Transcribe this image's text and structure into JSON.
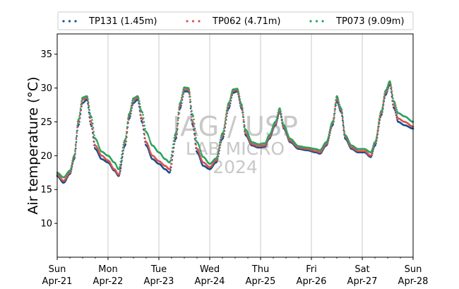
{
  "chart_data": {
    "type": "scatter",
    "ylabel": "Air temperature (°C)",
    "xlabel": "",
    "ylim": [
      5,
      38
    ],
    "xlim": [
      "2024-04-21T00:00",
      "2024-04-28T00:00"
    ],
    "y_ticks": [
      10,
      15,
      20,
      25,
      30,
      35
    ],
    "x_ticks": [
      {
        "at": "2024-04-21T00:00",
        "day": "Sun",
        "date": "Apr-21"
      },
      {
        "at": "2024-04-22T00:00",
        "day": "Mon",
        "date": "Apr-22"
      },
      {
        "at": "2024-04-23T00:00",
        "day": "Tue",
        "date": "Apr-23"
      },
      {
        "at": "2024-04-24T00:00",
        "day": "Wed",
        "date": "Apr-24"
      },
      {
        "at": "2024-04-25T00:00",
        "day": "Thu",
        "date": "Apr-25"
      },
      {
        "at": "2024-04-26T00:00",
        "day": "Fri",
        "date": "Apr-26"
      },
      {
        "at": "2024-04-27T00:00",
        "day": "Sat",
        "date": "Apr-27"
      },
      {
        "at": "2024-04-28T00:00",
        "day": "Sun",
        "date": "Apr-28"
      }
    ],
    "grid": "vertical",
    "legend_position": "top",
    "watermark": [
      "IAG / USP",
      "LAB MICRO",
      "2024"
    ],
    "series": [
      {
        "name": "TP131 (1.45m)",
        "color": "#1f4e8c",
        "points": [
          [
            "2024-04-21T00:00",
            17.0
          ],
          [
            "2024-04-21T03:00",
            16.0
          ],
          [
            "2024-04-21T06:00",
            17.3
          ],
          [
            "2024-04-21T08:00",
            19.5
          ],
          [
            "2024-04-21T10:00",
            24.5
          ],
          [
            "2024-04-21T12:00",
            27.8
          ],
          [
            "2024-04-21T14:00",
            28.3
          ],
          [
            "2024-04-21T16:00",
            24.5
          ],
          [
            "2024-04-21T18:00",
            21.0
          ],
          [
            "2024-04-21T21:00",
            19.5
          ],
          [
            "2024-04-22T00:00",
            19.0
          ],
          [
            "2024-04-22T03:00",
            17.8
          ],
          [
            "2024-04-22T05:00",
            17.0
          ],
          [
            "2024-04-22T08:00",
            21.5
          ],
          [
            "2024-04-22T10:00",
            25.5
          ],
          [
            "2024-04-22T12:00",
            27.8
          ],
          [
            "2024-04-22T14:00",
            28.3
          ],
          [
            "2024-04-22T16:00",
            25.0
          ],
          [
            "2024-04-22T18:00",
            21.5
          ],
          [
            "2024-04-22T21:00",
            19.5
          ],
          [
            "2024-04-23T00:00",
            18.8
          ],
          [
            "2024-04-23T03:00",
            18.0
          ],
          [
            "2024-04-23T05:00",
            17.5
          ],
          [
            "2024-04-23T08:00",
            22.5
          ],
          [
            "2024-04-23T10:00",
            27.0
          ],
          [
            "2024-04-23T12:00",
            29.5
          ],
          [
            "2024-04-23T14:00",
            29.5
          ],
          [
            "2024-04-23T16:00",
            24.5
          ],
          [
            "2024-04-23T18:00",
            20.5
          ],
          [
            "2024-04-23T21:00",
            18.5
          ],
          [
            "2024-04-24T00:00",
            18.0
          ],
          [
            "2024-04-24T03:00",
            19.0
          ],
          [
            "2024-04-24T06:00",
            22.5
          ],
          [
            "2024-04-24T09:00",
            27.0
          ],
          [
            "2024-04-24T11:00",
            29.3
          ],
          [
            "2024-04-24T13:00",
            29.5
          ],
          [
            "2024-04-24T15:00",
            27.0
          ],
          [
            "2024-04-24T17:00",
            23.0
          ],
          [
            "2024-04-24T20:00",
            21.5
          ],
          [
            "2024-04-24T23:00",
            21.2
          ],
          [
            "2024-04-25T02:00",
            21.3
          ],
          [
            "2024-04-25T04:00",
            22.5
          ],
          [
            "2024-04-25T07:00",
            24.5
          ],
          [
            "2024-04-25T09:00",
            26.5
          ],
          [
            "2024-04-25T11:00",
            24.0
          ],
          [
            "2024-04-25T14:00",
            22.0
          ],
          [
            "2024-04-25T18:00",
            21.0
          ],
          [
            "2024-04-25T22:00",
            20.8
          ],
          [
            "2024-04-26T02:00",
            20.5
          ],
          [
            "2024-04-26T04:00",
            20.3
          ],
          [
            "2024-04-26T07:00",
            21.5
          ],
          [
            "2024-04-26T10:00",
            24.5
          ],
          [
            "2024-04-26T12:00",
            28.0
          ],
          [
            "2024-04-26T14:00",
            26.5
          ],
          [
            "2024-04-26T16:00",
            22.5
          ],
          [
            "2024-04-26T19:00",
            21.0
          ],
          [
            "2024-04-26T22:00",
            20.5
          ],
          [
            "2024-04-27T01:00",
            20.5
          ],
          [
            "2024-04-27T04:00",
            19.8
          ],
          [
            "2024-04-27T06:00",
            21.5
          ],
          [
            "2024-04-27T09:00",
            26.0
          ],
          [
            "2024-04-27T11:00",
            29.0
          ],
          [
            "2024-04-27T13:00",
            30.5
          ],
          [
            "2024-04-27T15:00",
            27.0
          ],
          [
            "2024-04-27T17:00",
            25.0
          ],
          [
            "2024-04-27T20:00",
            24.5
          ],
          [
            "2024-04-28T00:00",
            24.0
          ]
        ]
      },
      {
        "name": "TP062 (4.71m)",
        "color": "#d9534f",
        "points": [
          [
            "2024-04-21T00:00",
            17.2
          ],
          [
            "2024-04-21T03:00",
            16.3
          ],
          [
            "2024-04-21T06:00",
            17.5
          ],
          [
            "2024-04-21T08:00",
            19.8
          ],
          [
            "2024-04-21T10:00",
            25.0
          ],
          [
            "2024-04-21T12:00",
            28.3
          ],
          [
            "2024-04-21T14:00",
            28.6
          ],
          [
            "2024-04-21T16:00",
            25.0
          ],
          [
            "2024-04-21T18:00",
            21.5
          ],
          [
            "2024-04-21T21:00",
            20.0
          ],
          [
            "2024-04-22T00:00",
            19.3
          ],
          [
            "2024-04-22T03:00",
            18.0
          ],
          [
            "2024-04-22T05:00",
            17.2
          ],
          [
            "2024-04-22T08:00",
            22.0
          ],
          [
            "2024-04-22T10:00",
            26.0
          ],
          [
            "2024-04-22T12:00",
            28.2
          ],
          [
            "2024-04-22T14:00",
            28.6
          ],
          [
            "2024-04-22T16:00",
            25.5
          ],
          [
            "2024-04-22T18:00",
            22.0
          ],
          [
            "2024-04-22T21:00",
            20.0
          ],
          [
            "2024-04-23T00:00",
            19.2
          ],
          [
            "2024-04-23T03:00",
            18.5
          ],
          [
            "2024-04-23T05:00",
            18.0
          ],
          [
            "2024-04-23T08:00",
            23.0
          ],
          [
            "2024-04-23T10:00",
            27.5
          ],
          [
            "2024-04-23T12:00",
            29.8
          ],
          [
            "2024-04-23T14:00",
            29.8
          ],
          [
            "2024-04-23T16:00",
            25.0
          ],
          [
            "2024-04-23T18:00",
            21.0
          ],
          [
            "2024-04-23T21:00",
            19.0
          ],
          [
            "2024-04-24T00:00",
            18.3
          ],
          [
            "2024-04-24T03:00",
            19.3
          ],
          [
            "2024-04-24T06:00",
            23.0
          ],
          [
            "2024-04-24T09:00",
            27.5
          ],
          [
            "2024-04-24T11:00",
            29.6
          ],
          [
            "2024-04-24T13:00",
            29.7
          ],
          [
            "2024-04-24T15:00",
            27.3
          ],
          [
            "2024-04-24T17:00",
            23.3
          ],
          [
            "2024-04-24T20:00",
            21.7
          ],
          [
            "2024-04-24T23:00",
            21.4
          ],
          [
            "2024-04-25T02:00",
            21.5
          ],
          [
            "2024-04-25T04:00",
            22.7
          ],
          [
            "2024-04-25T07:00",
            24.7
          ],
          [
            "2024-04-25T09:00",
            26.6
          ],
          [
            "2024-04-25T11:00",
            24.2
          ],
          [
            "2024-04-25T14:00",
            22.2
          ],
          [
            "2024-04-25T18:00",
            21.2
          ],
          [
            "2024-04-25T22:00",
            21.0
          ],
          [
            "2024-04-26T02:00",
            20.7
          ],
          [
            "2024-04-26T04:00",
            20.5
          ],
          [
            "2024-04-26T07:00",
            21.7
          ],
          [
            "2024-04-26T10:00",
            24.8
          ],
          [
            "2024-04-26T12:00",
            28.4
          ],
          [
            "2024-04-26T14:00",
            26.8
          ],
          [
            "2024-04-26T16:00",
            22.8
          ],
          [
            "2024-04-26T19:00",
            21.2
          ],
          [
            "2024-04-26T22:00",
            20.7
          ],
          [
            "2024-04-27T01:00",
            20.7
          ],
          [
            "2024-04-27T04:00",
            20.0
          ],
          [
            "2024-04-27T06:00",
            21.8
          ],
          [
            "2024-04-27T09:00",
            26.3
          ],
          [
            "2024-04-27T11:00",
            29.3
          ],
          [
            "2024-04-27T13:00",
            30.8
          ],
          [
            "2024-04-27T15:00",
            27.5
          ],
          [
            "2024-04-27T17:00",
            25.5
          ],
          [
            "2024-04-27T20:00",
            25.0
          ],
          [
            "2024-04-28T00:00",
            24.3
          ]
        ]
      },
      {
        "name": "TP073 (9.09m)",
        "color": "#2ca25f",
        "points": [
          [
            "2024-04-21T00:00",
            17.5
          ],
          [
            "2024-04-21T03:00",
            16.8
          ],
          [
            "2024-04-21T06:00",
            17.8
          ],
          [
            "2024-04-21T08:00",
            20.0
          ],
          [
            "2024-04-21T10:00",
            25.3
          ],
          [
            "2024-04-21T12:00",
            28.6
          ],
          [
            "2024-04-21T14:00",
            28.8
          ],
          [
            "2024-04-21T16:00",
            25.8
          ],
          [
            "2024-04-21T18:00",
            22.5
          ],
          [
            "2024-04-21T21:00",
            20.6
          ],
          [
            "2024-04-22T00:00",
            20.0
          ],
          [
            "2024-04-22T03:00",
            19.0
          ],
          [
            "2024-04-22T05:00",
            18.0
          ],
          [
            "2024-04-22T08:00",
            22.3
          ],
          [
            "2024-04-22T10:00",
            26.2
          ],
          [
            "2024-04-22T12:00",
            28.5
          ],
          [
            "2024-04-22T14:00",
            28.8
          ],
          [
            "2024-04-22T16:00",
            26.5
          ],
          [
            "2024-04-22T18:00",
            23.5
          ],
          [
            "2024-04-22T21:00",
            21.5
          ],
          [
            "2024-04-23T00:00",
            20.5
          ],
          [
            "2024-04-23T03:00",
            19.5
          ],
          [
            "2024-04-23T05:00",
            19.0
          ],
          [
            "2024-04-23T08:00",
            23.3
          ],
          [
            "2024-04-23T10:00",
            27.8
          ],
          [
            "2024-04-23T12:00",
            30.1
          ],
          [
            "2024-04-23T14:00",
            30.0
          ],
          [
            "2024-04-23T16:00",
            26.0
          ],
          [
            "2024-04-23T18:00",
            22.0
          ],
          [
            "2024-04-23T21:00",
            19.8
          ],
          [
            "2024-04-24T00:00",
            18.8
          ],
          [
            "2024-04-24T03:00",
            19.6
          ],
          [
            "2024-04-24T06:00",
            23.3
          ],
          [
            "2024-04-24T09:00",
            27.8
          ],
          [
            "2024-04-24T11:00",
            29.8
          ],
          [
            "2024-04-24T13:00",
            29.9
          ],
          [
            "2024-04-24T15:00",
            27.6
          ],
          [
            "2024-04-24T17:00",
            23.8
          ],
          [
            "2024-04-24T20:00",
            22.0
          ],
          [
            "2024-04-24T23:00",
            21.7
          ],
          [
            "2024-04-25T02:00",
            21.8
          ],
          [
            "2024-04-25T04:00",
            23.0
          ],
          [
            "2024-04-25T07:00",
            25.0
          ],
          [
            "2024-04-25T09:00",
            27.0
          ],
          [
            "2024-04-25T11:00",
            24.5
          ],
          [
            "2024-04-25T14:00",
            22.5
          ],
          [
            "2024-04-25T18:00",
            21.4
          ],
          [
            "2024-04-25T22:00",
            21.2
          ],
          [
            "2024-04-26T02:00",
            21.0
          ],
          [
            "2024-04-26T04:00",
            20.8
          ],
          [
            "2024-04-26T07:00",
            22.0
          ],
          [
            "2024-04-26T10:00",
            25.0
          ],
          [
            "2024-04-26T12:00",
            28.8
          ],
          [
            "2024-04-26T14:00",
            27.0
          ],
          [
            "2024-04-26T16:00",
            23.0
          ],
          [
            "2024-04-26T19:00",
            21.5
          ],
          [
            "2024-04-26T22:00",
            21.0
          ],
          [
            "2024-04-27T01:00",
            21.0
          ],
          [
            "2024-04-27T04:00",
            20.5
          ],
          [
            "2024-04-27T06:00",
            22.0
          ],
          [
            "2024-04-27T09:00",
            26.6
          ],
          [
            "2024-04-27T11:00",
            29.6
          ],
          [
            "2024-04-27T13:00",
            31.0
          ],
          [
            "2024-04-27T15:00",
            28.0
          ],
          [
            "2024-04-27T17:00",
            26.3
          ],
          [
            "2024-04-27T20:00",
            25.8
          ],
          [
            "2024-04-28T00:00",
            25.0
          ]
        ]
      }
    ]
  }
}
